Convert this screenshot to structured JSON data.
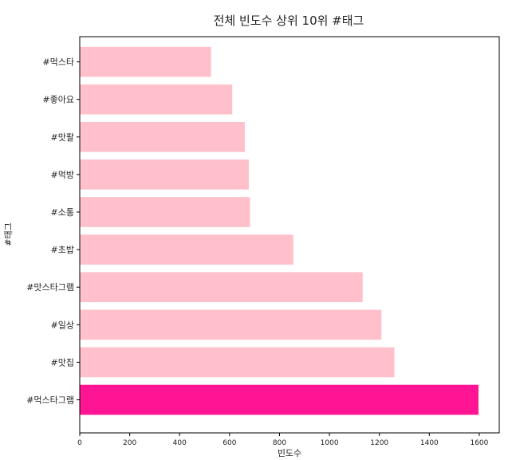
{
  "chart_data": {
    "type": "bar",
    "orientation": "horizontal",
    "title": "전체 빈도수 상위 10위 #태그",
    "xlabel": "빈도수",
    "ylabel": "#태그",
    "xlim": [
      0,
      1680
    ],
    "xticks": [
      0,
      200,
      400,
      600,
      800,
      1000,
      1200,
      1400,
      1600
    ],
    "categories": [
      "#먹스타그램",
      "#맛집",
      "#일상",
      "#맛스타그램",
      "#초밥",
      "#소통",
      "#먹방",
      "#맛팔",
      "#좋아요",
      "#먹스타"
    ],
    "values": [
      1597,
      1260,
      1208,
      1133,
      855,
      682,
      677,
      661,
      611,
      526
    ],
    "highlight_index": 0,
    "colors": {
      "bar": "#ffc0cb",
      "highlight": "#ff1493"
    },
    "grid": false
  }
}
